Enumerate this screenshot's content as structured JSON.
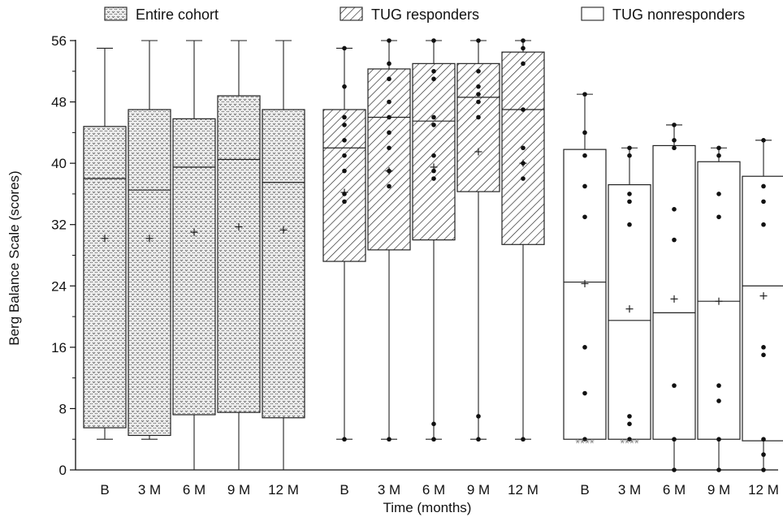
{
  "chart_data": {
    "type": "boxplot",
    "xlabel": "Time (months)",
    "ylabel": "Berg Balance Scale (scores)",
    "ylim": [
      0,
      56
    ],
    "yticks": [
      0,
      8,
      16,
      24,
      32,
      40,
      48,
      56
    ],
    "legend_placement": "top",
    "grid": false,
    "categories": [
      "B",
      "3 M",
      "6 M",
      "9 M",
      "12 M"
    ],
    "series": [
      {
        "name": "Entire cohort",
        "pattern": "dotted",
        "fill_color": "#e6e6e6",
        "boxes": [
          {
            "label": "B",
            "whisker_low": 4,
            "q1": 5.5,
            "median": 38,
            "q3": 44.8,
            "whisker_high": 55,
            "mean": 30.2,
            "points": []
          },
          {
            "label": "3 M",
            "whisker_low": 4,
            "q1": 4.5,
            "median": 36.5,
            "q3": 47,
            "whisker_high": 56,
            "mean": 30.2,
            "points": []
          },
          {
            "label": "6 M",
            "whisker_low": 0,
            "q1": 7.2,
            "median": 39.5,
            "q3": 45.8,
            "whisker_high": 56,
            "mean": 31,
            "points": []
          },
          {
            "label": "9 M",
            "whisker_low": 0,
            "q1": 7.5,
            "median": 40.5,
            "q3": 48.8,
            "whisker_high": 56,
            "mean": 31.7,
            "points": []
          },
          {
            "label": "12 M",
            "whisker_low": 0,
            "q1": 6.8,
            "median": 37.5,
            "q3": 47,
            "whisker_high": 56,
            "mean": 31.3,
            "points": []
          }
        ]
      },
      {
        "name": "TUG responders",
        "pattern": "diagonal",
        "fill_color": "#ffffff",
        "boxes": [
          {
            "label": "B",
            "whisker_low": 4,
            "q1": 27.2,
            "median": 42,
            "q3": 47,
            "whisker_high": 55,
            "mean": 36.2,
            "points": [
              55,
              50,
              46,
              45,
              43,
              41,
              39,
              36,
              35,
              4
            ]
          },
          {
            "label": "3 M",
            "whisker_low": 4,
            "q1": 28.7,
            "median": 46,
            "q3": 52.3,
            "whisker_high": 56,
            "mean": 39,
            "points": [
              56,
              53,
              51,
              48,
              46,
              44,
              42,
              39,
              37,
              4
            ]
          },
          {
            "label": "6 M",
            "whisker_low": 4,
            "q1": 30,
            "median": 45.5,
            "q3": 53,
            "whisker_high": 56,
            "mean": 39.5,
            "points": [
              56,
              52,
              51,
              46,
              45,
              41,
              39,
              38,
              6,
              4
            ]
          },
          {
            "label": "9 M",
            "whisker_low": 4,
            "q1": 36.3,
            "median": 48.6,
            "q3": 53,
            "whisker_high": 56,
            "mean": 41.5,
            "points": [
              56,
              52,
              50,
              49,
              48,
              46,
              7,
              4
            ]
          },
          {
            "label": "12 M",
            "whisker_low": 4,
            "q1": 29.4,
            "median": 47,
            "q3": 54.5,
            "whisker_high": 56,
            "mean": 40,
            "points": [
              56,
              55,
              53,
              47,
              42,
              40,
              38,
              4
            ]
          }
        ]
      },
      {
        "name": "TUG nonresponders",
        "pattern": "none",
        "fill_color": "#ffffff",
        "boxes": [
          {
            "label": "B",
            "whisker_low": 4,
            "q1": 4,
            "median": 24.5,
            "q3": 41.8,
            "whisker_high": 49,
            "mean": 24.3,
            "points": [
              49,
              44,
              41,
              37,
              33,
              16,
              10,
              4
            ],
            "annotation": "****"
          },
          {
            "label": "3 M",
            "whisker_low": 4,
            "q1": 4,
            "median": 19.5,
            "q3": 37.2,
            "whisker_high": 42,
            "mean": 21,
            "points": [
              42,
              41,
              36,
              35,
              32,
              7,
              6,
              4
            ],
            "annotation": "****"
          },
          {
            "label": "6 M",
            "whisker_low": 0,
            "q1": 4,
            "median": 20.5,
            "q3": 42.3,
            "whisker_high": 45,
            "mean": 22.3,
            "points": [
              45,
              43,
              42,
              34,
              30,
              11,
              4,
              0
            ]
          },
          {
            "label": "9 M",
            "whisker_low": 0,
            "q1": 4,
            "median": 22,
            "q3": 40.2,
            "whisker_high": 42,
            "mean": 22,
            "points": [
              42,
              41,
              36,
              33,
              11,
              9,
              4,
              0
            ]
          },
          {
            "label": "12 M",
            "whisker_low": 0,
            "q1": 3.8,
            "median": 24,
            "q3": 38.3,
            "whisker_high": 43,
            "mean": 22.7,
            "points": [
              43,
              37,
              35,
              32,
              16,
              15,
              4,
              2,
              0
            ]
          }
        ]
      }
    ]
  }
}
